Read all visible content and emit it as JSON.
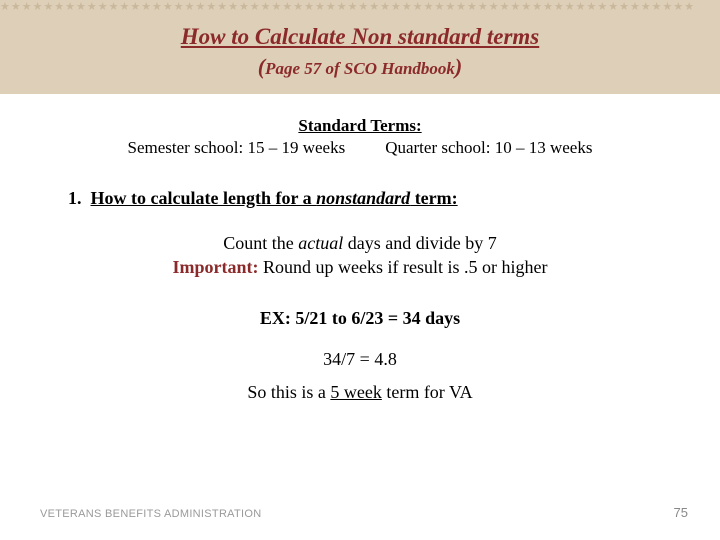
{
  "header": {
    "title": "How to Calculate Non standard terms",
    "subtitle_open": "(",
    "subtitle_text": "Page 57 of SCO Handbook",
    "subtitle_close": ")",
    "band_bg": "#decfb9",
    "title_color": "#8b2a2a",
    "star_color": "#c9b89c",
    "star_glyph": "★★★★★★★★★★★★★★★★★★★★★★★★★★★★★★★★★★★★★★★★★★★★★★★★★★★★★★★★★★★★★★★★"
  },
  "standard": {
    "heading": "Standard Terms:",
    "semester": "Semester school: 15 – 19 weeks",
    "quarter": "Quarter school: 10 – 13 weeks"
  },
  "section": {
    "number": "1.",
    "lead": "How to calculate length for a ",
    "emph": "nonstandard",
    "tail": " term:"
  },
  "instruction": {
    "line1_a": "Count the ",
    "line1_b": "actual",
    "line1_c": " days and divide by 7",
    "important_label": "Important:",
    "line2": " Round up weeks if result is .5 or higher"
  },
  "example": {
    "ex_line": "EX: 5/21 to 6/23 = 34 days",
    "calc": "34/7 = 4.8",
    "result_a": "So this is a ",
    "result_b": "5 week",
    "result_c": " term for VA"
  },
  "footer": {
    "org": "VETERANS BENEFITS ADMINISTRATION",
    "page": "75"
  },
  "colors": {
    "text": "#000000",
    "accent": "#8b2a2a",
    "footer": "#9a9a9a",
    "bg": "#ffffff"
  }
}
